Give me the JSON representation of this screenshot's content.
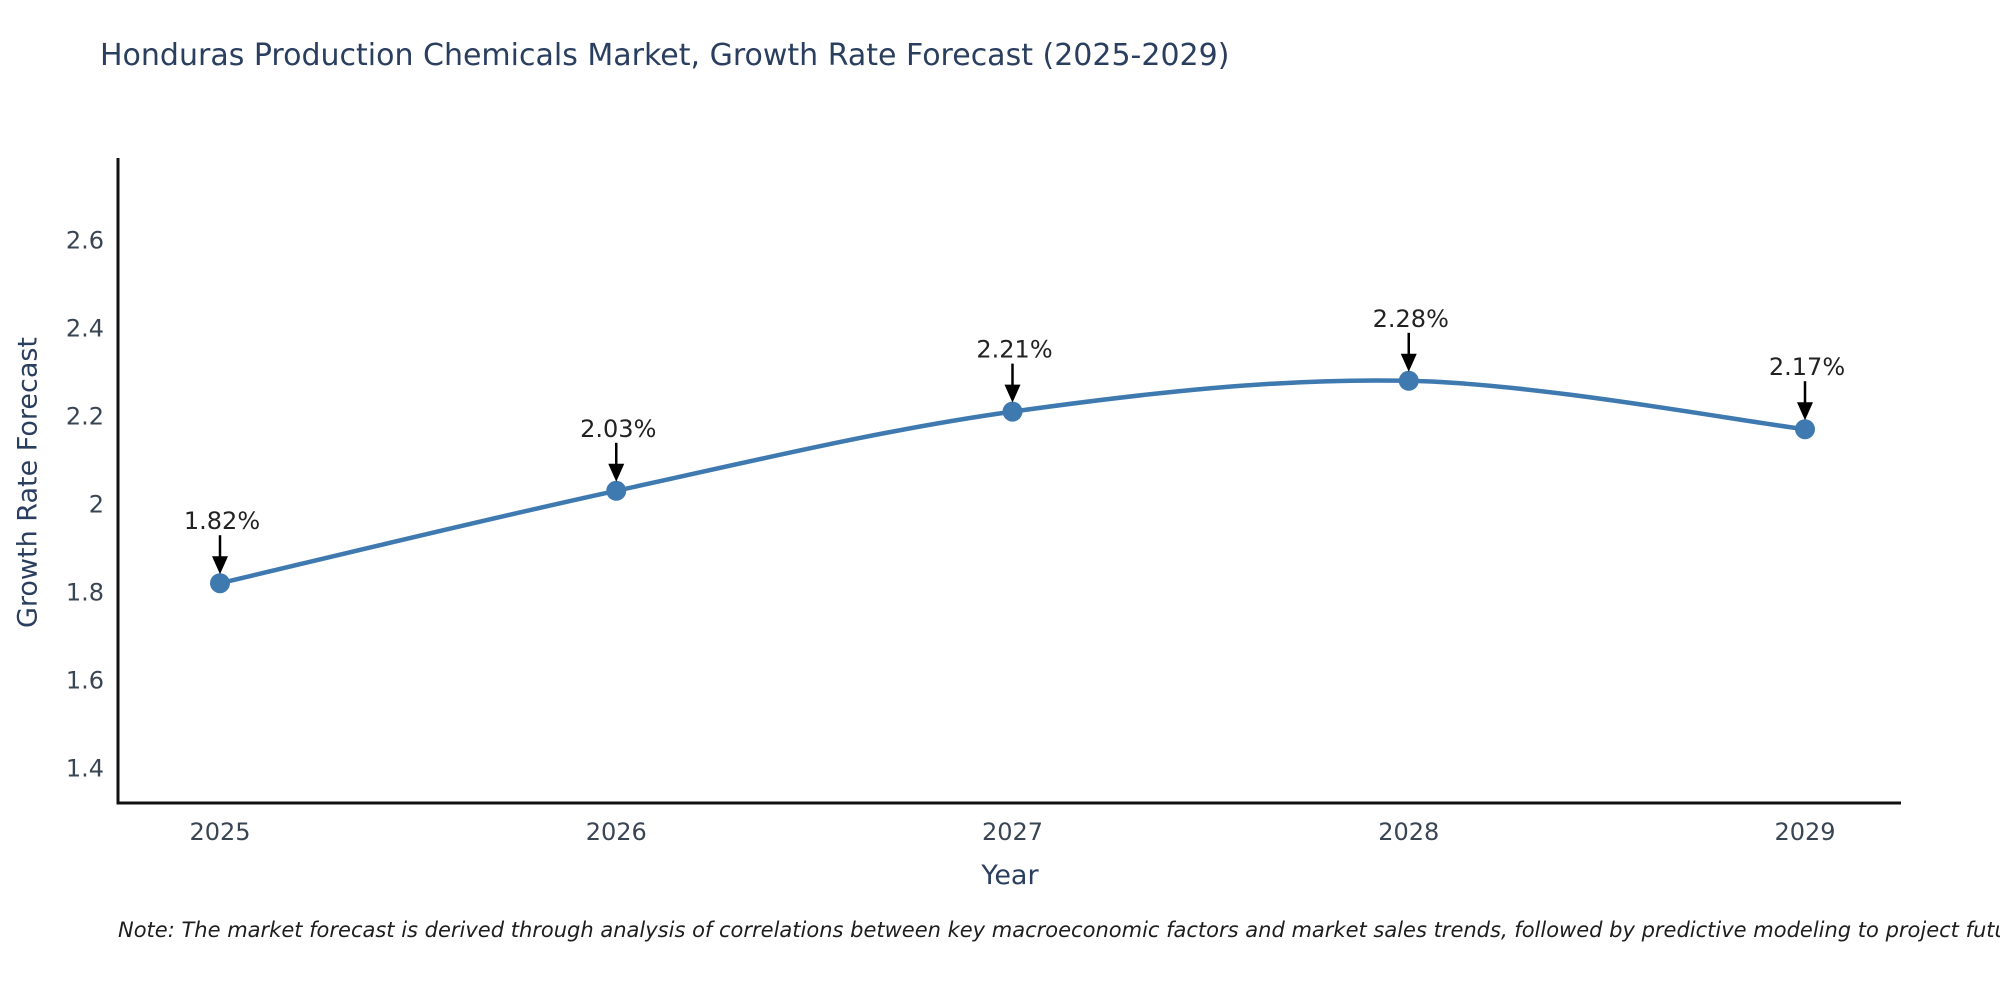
{
  "note": "Note: The market forecast is derived through analysis of correlations between key macroeconomic factors and market sales trends, followed by predictive modeling to project future sales",
  "colors": {
    "line": "#3e79b0",
    "marker_fill": "#3e79b0",
    "arrow": "#000000",
    "axis_spine": "#111111",
    "title_text": "#2a3f5f",
    "tick_text": "#3a4554",
    "annotation_text": "#222222",
    "background": "#ffffff"
  },
  "chart_data": {
    "type": "line",
    "title": "Honduras Production Chemicals Market, Growth Rate Forecast (2025-2029)",
    "xlabel": "Year",
    "ylabel": "Growth Rate Forecast",
    "categories": [
      "2025",
      "2026",
      "2027",
      "2028",
      "2029"
    ],
    "x": [
      2025,
      2026,
      2027,
      2028,
      2029
    ],
    "values": [
      1.82,
      2.03,
      2.21,
      2.28,
      2.17
    ],
    "point_labels": [
      "1.82%",
      "2.03%",
      "2.21%",
      "2.28%",
      "2.17%"
    ],
    "unit": "%",
    "yticks": [
      1.4,
      1.6,
      1.8,
      2,
      2.2,
      2.4,
      2.6
    ],
    "ytick_labels": [
      "1.4",
      "1.6",
      "1.8",
      "2",
      "2.2",
      "2.4",
      "2.6"
    ],
    "xlim": [
      2024.74,
      2029.25
    ],
    "ylim": [
      1.32,
      2.78
    ],
    "grid": false,
    "legend_position": "none",
    "line_shape": "spline",
    "marker": "circle",
    "annotations_have_arrows": true
  }
}
